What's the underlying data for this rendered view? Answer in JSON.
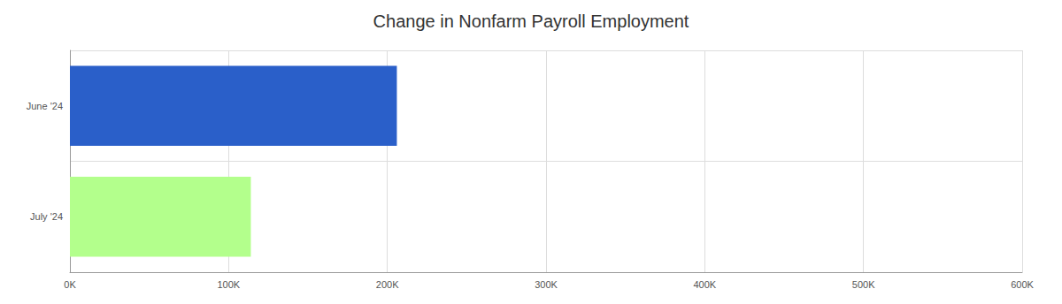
{
  "chart_data": {
    "type": "bar",
    "title": "Change in Nonfarm Payroll Employment",
    "orientation": "horizontal",
    "categories": [
      "June '24",
      "July '24"
    ],
    "values": [
      206000,
      114000
    ],
    "colors": [
      "#2a5fc9",
      "#b3ff8c"
    ],
    "xlim": [
      0,
      600000
    ],
    "xticks": [
      {
        "value": 0,
        "label": "0K"
      },
      {
        "value": 100000,
        "label": "100K"
      },
      {
        "value": 200000,
        "label": "200K"
      },
      {
        "value": 300000,
        "label": "300K"
      },
      {
        "value": 400000,
        "label": "400K"
      },
      {
        "value": 500000,
        "label": "500K"
      },
      {
        "value": 600000,
        "label": "600K"
      }
    ],
    "grid": true
  }
}
